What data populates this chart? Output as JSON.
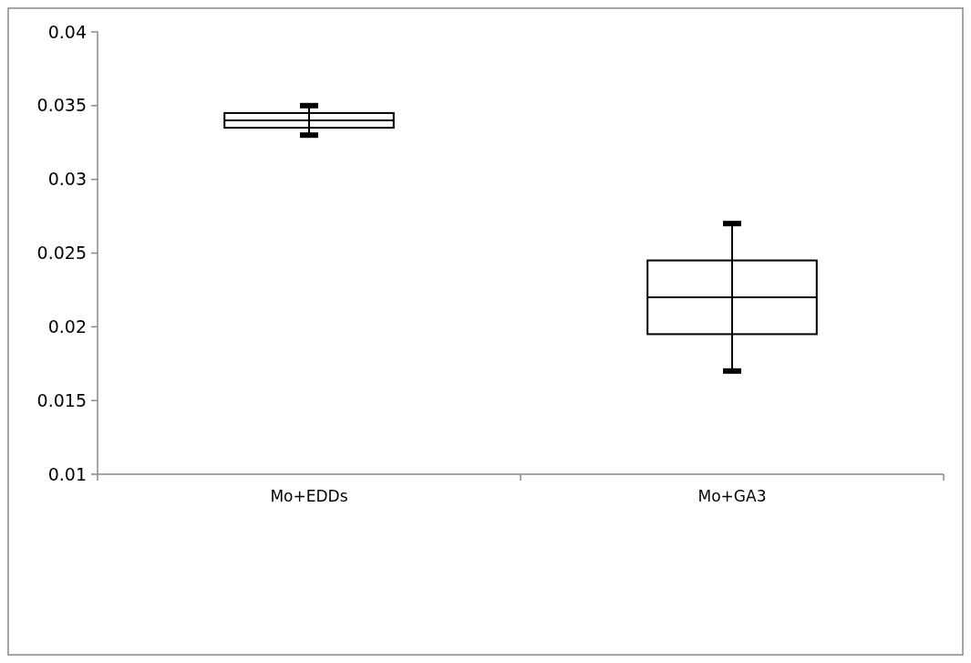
{
  "chart_data": {
    "type": "box",
    "categories": [
      "Mo+EDDs",
      "Mo+GA3"
    ],
    "boxes": [
      {
        "low": 0.033,
        "q1": 0.0335,
        "median": 0.034,
        "q3": 0.0345,
        "high": 0.035
      },
      {
        "low": 0.017,
        "q1": 0.0195,
        "median": 0.022,
        "q3": 0.0245,
        "high": 0.027
      }
    ],
    "ylim": [
      0.01,
      0.04
    ],
    "yticks": [
      0.01,
      0.015,
      0.02,
      0.025,
      0.03,
      0.035,
      0.04
    ],
    "grid": false
  }
}
